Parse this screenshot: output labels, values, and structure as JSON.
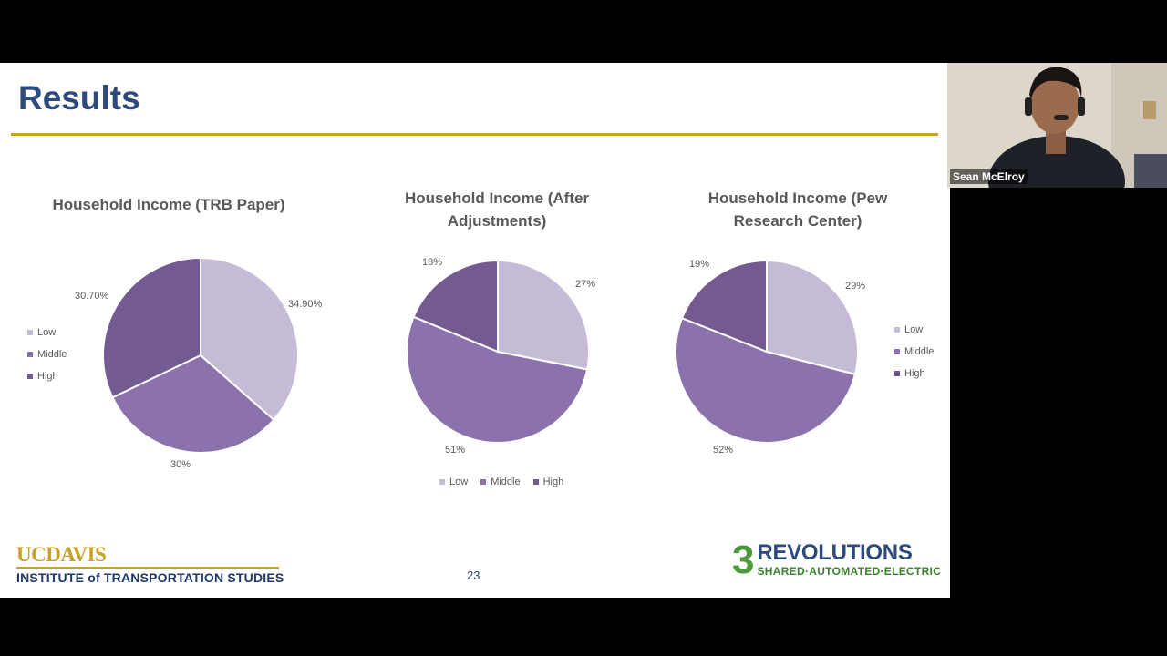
{
  "slide": {
    "title": "Results",
    "page_number": "23",
    "left_logo": {
      "line1": "UCDAVIS",
      "line2": "INSTITUTE of TRANSPORTATION STUDIES"
    },
    "right_logo": {
      "number": "3",
      "line1": "REVOLUTIONS",
      "line2": "SHARED·AUTOMATED·ELECTRIC"
    }
  },
  "colors": {
    "low": "#c6bbd6",
    "middle": "#8c72ad",
    "high": "#735a91",
    "title_blue": "#2c4a7c",
    "gold": "#c9a227"
  },
  "legend_labels": [
    "Low",
    "Middle",
    "High"
  ],
  "video": {
    "participant_name": "Sean McElroy"
  },
  "chart_data": [
    {
      "type": "pie",
      "title": "Household Income (TRB Paper)",
      "categories": [
        "Low",
        "Middle",
        "High"
      ],
      "values": [
        34.9,
        30,
        30.7
      ],
      "labels": [
        "34.90%",
        "30%",
        "30.70%"
      ],
      "legend_placement": "left"
    },
    {
      "type": "pie",
      "title": "Household Income (After Adjustments)",
      "categories": [
        "Low",
        "Middle",
        "High"
      ],
      "values": [
        27,
        51,
        18
      ],
      "labels": [
        "27%",
        "51%",
        "18%"
      ],
      "legend_placement": "bottom"
    },
    {
      "type": "pie",
      "title": "Household Income (Pew Research Center)",
      "categories": [
        "Low",
        "Middle",
        "High"
      ],
      "values": [
        29,
        52,
        19
      ],
      "labels": [
        "29%",
        "52%",
        "19%"
      ],
      "legend_placement": "right"
    }
  ]
}
